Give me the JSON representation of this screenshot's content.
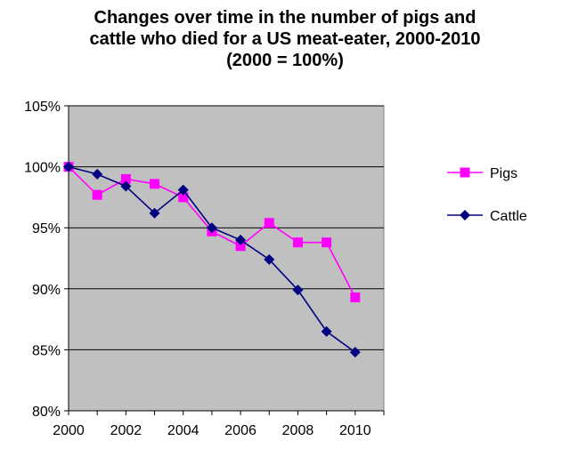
{
  "chart_data": {
    "type": "line",
    "title_lines": [
      "Changes over time in the number of pigs and",
      "cattle who died for a US meat-eater, 2000-2010",
      "(2000 = 100%)"
    ],
    "xlabel": "",
    "ylabel": "",
    "x": [
      2000,
      2001,
      2002,
      2003,
      2004,
      2005,
      2006,
      2007,
      2008,
      2009,
      2010
    ],
    "x_ticks": [
      2000,
      2002,
      2004,
      2006,
      2008,
      2010
    ],
    "x_tick_labels": [
      "2000",
      "2002",
      "2004",
      "2006",
      "2008",
      "2010"
    ],
    "xlim": [
      2000,
      2011
    ],
    "ylim": [
      80,
      105
    ],
    "y_ticks": [
      80,
      85,
      90,
      95,
      100,
      105
    ],
    "y_tick_labels": [
      "80%",
      "85%",
      "90%",
      "95%",
      "100%",
      "105%"
    ],
    "grid": "horizontal",
    "plot_background": "#c0c0c0",
    "legend_position": "right",
    "series": [
      {
        "name": "Pigs",
        "marker": "square",
        "color": "#ff00ff",
        "values": [
          100.0,
          97.7,
          99.0,
          98.6,
          97.5,
          94.7,
          93.5,
          95.4,
          93.8,
          93.8,
          89.3
        ]
      },
      {
        "name": "Cattle",
        "marker": "diamond",
        "color": "#000080",
        "values": [
          100.0,
          99.4,
          98.4,
          96.2,
          98.1,
          95.0,
          94.0,
          92.4,
          89.9,
          86.5,
          84.8
        ]
      }
    ]
  }
}
